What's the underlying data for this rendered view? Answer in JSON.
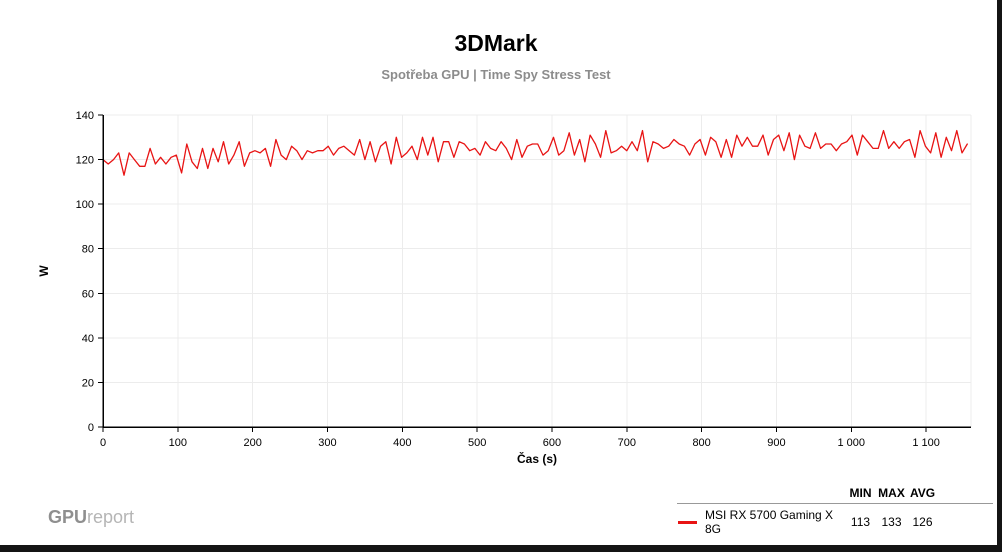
{
  "title": "3DMark",
  "subtitle": "Spotřeba GPU | Time Spy Stress Test",
  "footer": {
    "logo_bold": "GPU",
    "logo_light": "report"
  },
  "legend": {
    "headers": [
      "MIN",
      "MAX",
      "AVG"
    ],
    "series": [
      {
        "name": "MSI RX 5700 Gaming X 8G",
        "color": "#e81414",
        "min": 113,
        "max": 133,
        "avg": 126
      }
    ]
  },
  "chart_data": {
    "type": "line",
    "title": "3DMark",
    "subtitle": "Spotřeba GPU | Time Spy Stress Test",
    "xlabel": "Čas (s)",
    "ylabel": "W",
    "xlim": [
      0,
      1160
    ],
    "ylim": [
      0,
      140
    ],
    "x_ticks": [
      0,
      100,
      200,
      300,
      400,
      500,
      600,
      700,
      800,
      900,
      1000,
      1100
    ],
    "x_tick_labels": [
      "0",
      "100",
      "200",
      "300",
      "400",
      "500",
      "600",
      "700",
      "800",
      "900",
      "1 000",
      "1 100"
    ],
    "y_ticks": [
      0,
      20,
      40,
      60,
      80,
      100,
      120,
      140
    ],
    "grid": true,
    "grid_color": "#ececec",
    "axis_color": "#000000",
    "legend_position": "bottom-right",
    "series": [
      {
        "name": "MSI RX 5700 Gaming X 8G",
        "color": "#e81414",
        "unit": "W",
        "min": 113,
        "max": 133,
        "avg": 126,
        "x_step": 7,
        "values": [
          120,
          118,
          120,
          123,
          113,
          123,
          120,
          117,
          117,
          125,
          118,
          121,
          118,
          121,
          122,
          114,
          127,
          119,
          116,
          125,
          116,
          125,
          119,
          128,
          118,
          122,
          128,
          117,
          123,
          124,
          123,
          125,
          117,
          129,
          122,
          120,
          126,
          124,
          120,
          124,
          123,
          124,
          124,
          126,
          122,
          125,
          126,
          124,
          122,
          129,
          120,
          128,
          119,
          126,
          128,
          118,
          130,
          121,
          123,
          126,
          120,
          130,
          122,
          130,
          119,
          128,
          128,
          121,
          128,
          127,
          124,
          125,
          122,
          128,
          125,
          124,
          128,
          125,
          120,
          129,
          121,
          126,
          127,
          127,
          122,
          124,
          130,
          122,
          124,
          132,
          122,
          129,
          119,
          131,
          127,
          121,
          133,
          123,
          124,
          126,
          124,
          128,
          124,
          133,
          119,
          128,
          127,
          125,
          126,
          129,
          127,
          126,
          122,
          127,
          129,
          122,
          130,
          128,
          121,
          129,
          121,
          131,
          126,
          130,
          126,
          126,
          131,
          122,
          129,
          131,
          124,
          132,
          120,
          131,
          126,
          125,
          132,
          125,
          127,
          127,
          124,
          127,
          128,
          131,
          122,
          131,
          128,
          125,
          125,
          133,
          125,
          128,
          125,
          128,
          129,
          121,
          133,
          126,
          123,
          132,
          121,
          130,
          124,
          133,
          123,
          127
        ]
      }
    ]
  }
}
